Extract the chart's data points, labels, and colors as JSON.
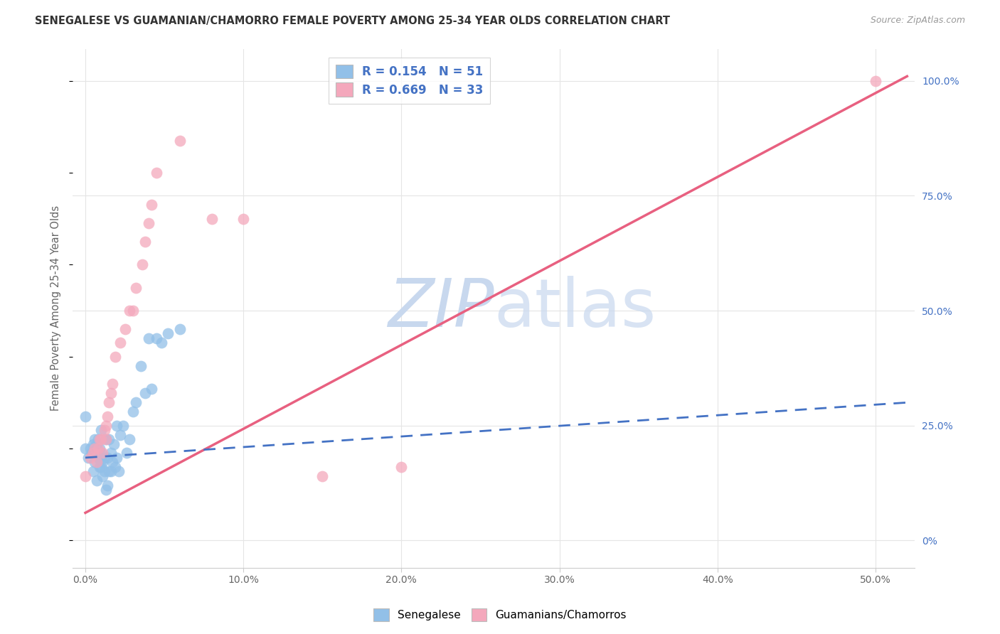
{
  "title": "SENEGALESE VS GUAMANIAN/CHAMORRO FEMALE POVERTY AMONG 25-34 YEAR OLDS CORRELATION CHART",
  "source": "Source: ZipAtlas.com",
  "ylabel": "Female Poverty Among 25-34 Year Olds",
  "xlim": [
    -0.008,
    0.525
  ],
  "ylim": [
    -0.06,
    1.07
  ],
  "x_tick_positions": [
    0.0,
    0.1,
    0.2,
    0.3,
    0.4,
    0.5
  ],
  "x_tick_labels": [
    "0.0%",
    "10.0%",
    "20.0%",
    "30.0%",
    "40.0%",
    "50.0%"
  ],
  "y_tick_positions": [
    0.0,
    0.25,
    0.5,
    0.75,
    1.0
  ],
  "y_tick_labels_right": [
    "0%",
    "25.0%",
    "50.0%",
    "75.0%",
    "100.0%"
  ],
  "senegalese_R": 0.154,
  "senegalese_N": 51,
  "guamanian_R": 0.669,
  "guamanian_N": 33,
  "blue_scatter_color": "#92C0E8",
  "pink_scatter_color": "#F4A8BC",
  "blue_line_color": "#4472C4",
  "pink_line_color": "#E86080",
  "grid_color": "#E5E5E5",
  "watermark_color": "#C8D8EE",
  "background_color": "#FFFFFF",
  "title_color": "#333333",
  "source_color": "#999999",
  "axis_label_color": "#666666",
  "tick_label_color": "#666666",
  "right_tick_color": "#4472C4",
  "senegalese_x": [
    0.0,
    0.0,
    0.002,
    0.003,
    0.004,
    0.005,
    0.005,
    0.006,
    0.006,
    0.007,
    0.007,
    0.008,
    0.008,
    0.009,
    0.009,
    0.009,
    0.01,
    0.01,
    0.01,
    0.011,
    0.011,
    0.012,
    0.012,
    0.013,
    0.013,
    0.014,
    0.014,
    0.015,
    0.015,
    0.016,
    0.016,
    0.017,
    0.018,
    0.019,
    0.02,
    0.02,
    0.021,
    0.022,
    0.024,
    0.026,
    0.028,
    0.03,
    0.032,
    0.035,
    0.038,
    0.04,
    0.042,
    0.045,
    0.048,
    0.052,
    0.06
  ],
  "senegalese_y": [
    0.2,
    0.27,
    0.18,
    0.2,
    0.19,
    0.21,
    0.15,
    0.22,
    0.17,
    0.21,
    0.13,
    0.18,
    0.22,
    0.16,
    0.2,
    0.18,
    0.19,
    0.16,
    0.24,
    0.17,
    0.14,
    0.18,
    0.15,
    0.22,
    0.11,
    0.18,
    0.12,
    0.15,
    0.22,
    0.15,
    0.19,
    0.17,
    0.21,
    0.16,
    0.25,
    0.18,
    0.15,
    0.23,
    0.25,
    0.19,
    0.22,
    0.28,
    0.3,
    0.38,
    0.32,
    0.44,
    0.33,
    0.44,
    0.43,
    0.45,
    0.46
  ],
  "guamanian_x": [
    0.0,
    0.003,
    0.005,
    0.006,
    0.007,
    0.008,
    0.009,
    0.01,
    0.011,
    0.012,
    0.013,
    0.013,
    0.014,
    0.015,
    0.016,
    0.017,
    0.019,
    0.022,
    0.025,
    0.028,
    0.03,
    0.032,
    0.036,
    0.038,
    0.04,
    0.042,
    0.045,
    0.06,
    0.08,
    0.1,
    0.15,
    0.2,
    0.5
  ],
  "guamanian_y": [
    0.14,
    0.18,
    0.19,
    0.2,
    0.17,
    0.2,
    0.22,
    0.22,
    0.19,
    0.24,
    0.22,
    0.25,
    0.27,
    0.3,
    0.32,
    0.34,
    0.4,
    0.43,
    0.46,
    0.5,
    0.5,
    0.55,
    0.6,
    0.65,
    0.69,
    0.73,
    0.8,
    0.87,
    0.7,
    0.7,
    0.14,
    0.16,
    1.0
  ],
  "gua_line_x0": 0.0,
  "gua_line_x1": 0.52,
  "gua_line_y0": 0.06,
  "gua_line_y1": 1.01,
  "sen_line_x0": 0.0,
  "sen_line_x1": 0.52,
  "sen_line_y0": 0.18,
  "sen_line_y1": 0.3
}
